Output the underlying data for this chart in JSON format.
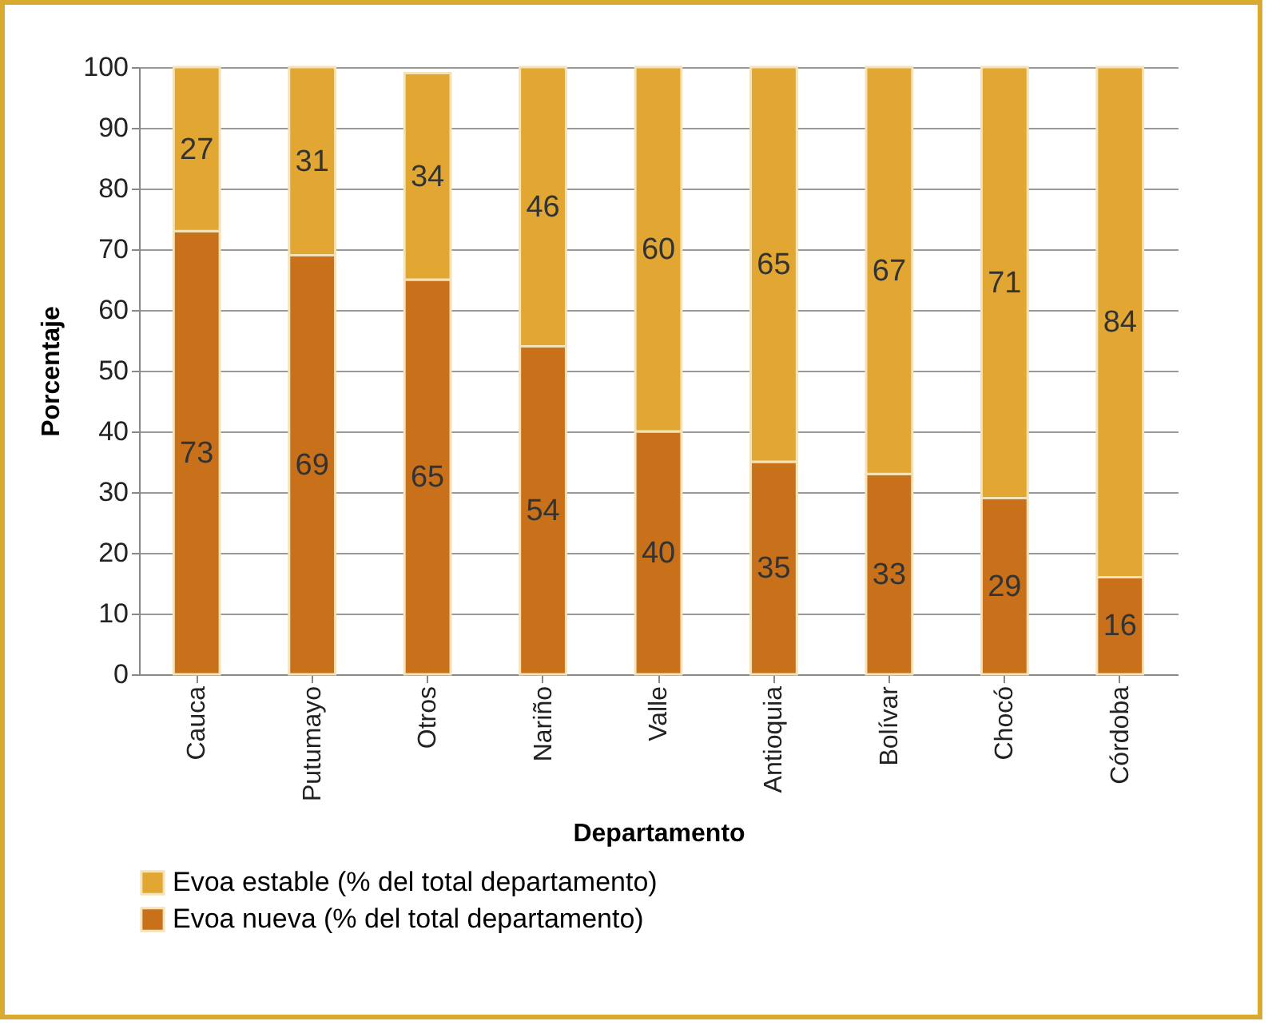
{
  "chart_data": {
    "type": "bar",
    "stacked": true,
    "xlabel": "Departamento",
    "ylabel": "Porcentaje",
    "categories": [
      "Cauca",
      "Putumayo",
      "Otros",
      "Nariño",
      "Valle",
      "Antioquia",
      "Bolívar",
      "Chocó",
      "Córdoba"
    ],
    "series": [
      {
        "name": "Evoa nueva (% del total departamento)",
        "color": "#c8711a",
        "values": [
          73,
          69,
          65,
          54,
          40,
          35,
          33,
          29,
          16
        ]
      },
      {
        "name": "Evoa estable (% del total departamento)",
        "color": "#e2a732",
        "values": [
          27,
          31,
          34,
          46,
          60,
          65,
          67,
          71,
          84
        ]
      }
    ],
    "ylim": [
      0,
      100
    ],
    "yticks": [
      0,
      10,
      20,
      30,
      40,
      50,
      60,
      70,
      80,
      90,
      100
    ],
    "grid": "y",
    "legend": "bottom",
    "data_labels": true
  }
}
